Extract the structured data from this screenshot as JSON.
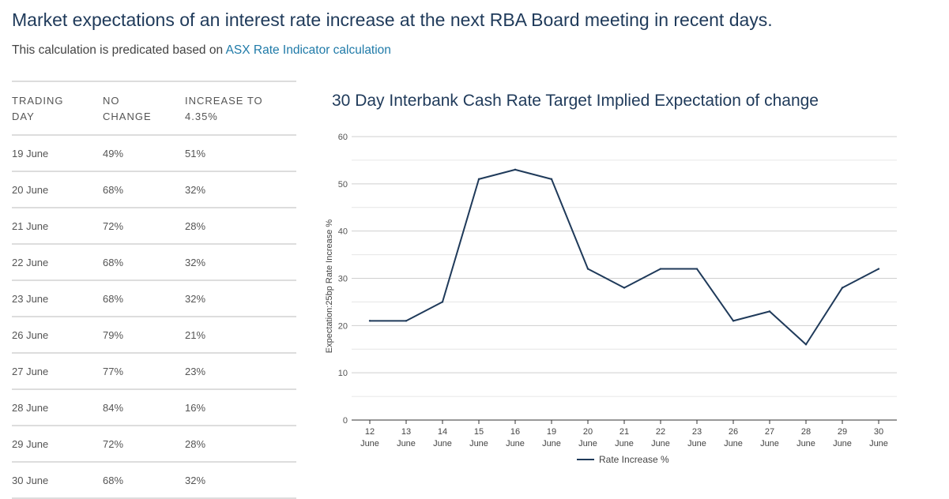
{
  "page": {
    "title": "Market expectations of an interest rate increase at the next RBA Board meeting in recent days.",
    "subtitle_prefix": "This calculation is predicated based on ",
    "subtitle_link": "ASX Rate Indicator calculation"
  },
  "table": {
    "headers": {
      "col1": [
        "TRADING",
        "DAY"
      ],
      "col2": [
        "NO",
        "CHANGE"
      ],
      "col3": [
        "INCREASE TO",
        "4.35%"
      ]
    },
    "rows": [
      {
        "day": "19 June",
        "no_change": "49%",
        "increase": "51%"
      },
      {
        "day": "20 June",
        "no_change": "68%",
        "increase": "32%"
      },
      {
        "day": "21 June",
        "no_change": "72%",
        "increase": "28%"
      },
      {
        "day": "22 June",
        "no_change": "68%",
        "increase": "32%"
      },
      {
        "day": "23 June",
        "no_change": "68%",
        "increase": "32%"
      },
      {
        "day": "26 June",
        "no_change": "79%",
        "increase": "21%"
      },
      {
        "day": "27 June",
        "no_change": "77%",
        "increase": "23%"
      },
      {
        "day": "28 June",
        "no_change": "84%",
        "increase": "16%"
      },
      {
        "day": "29 June",
        "no_change": "72%",
        "increase": "28%"
      },
      {
        "day": "30 June",
        "no_change": "68%",
        "increase": "32%"
      }
    ]
  },
  "chart_data": {
    "type": "line",
    "title": "30 Day Interbank Cash Rate Target Implied Expectation of change",
    "ylabel": "Expectation:25bp Rate Increase %",
    "xlabel": "",
    "ylim": [
      0,
      60
    ],
    "yticks": [
      0,
      10,
      20,
      30,
      40,
      50,
      60
    ],
    "grid": true,
    "legend_position": "bottom-center",
    "categories": [
      [
        "12",
        "June"
      ],
      [
        "13",
        "June"
      ],
      [
        "14",
        "June"
      ],
      [
        "15",
        "June"
      ],
      [
        "16",
        "June"
      ],
      [
        "19",
        "June"
      ],
      [
        "20",
        "June"
      ],
      [
        "21",
        "June"
      ],
      [
        "22",
        "June"
      ],
      [
        "23",
        "June"
      ],
      [
        "26",
        "June"
      ],
      [
        "27",
        "June"
      ],
      [
        "28",
        "June"
      ],
      [
        "29",
        "June"
      ],
      [
        "30",
        "June"
      ]
    ],
    "series": [
      {
        "name": "Rate Increase %",
        "color": "#1f3a5a",
        "values": [
          21,
          21,
          25,
          51,
          53,
          51,
          32,
          28,
          32,
          32,
          21,
          23,
          16,
          28,
          32
        ]
      }
    ]
  }
}
